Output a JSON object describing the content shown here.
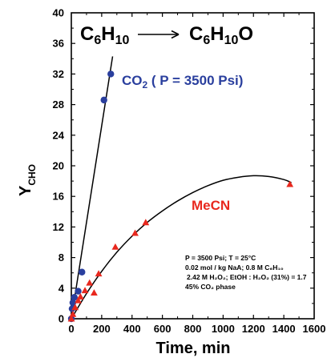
{
  "chart_data": {
    "type": "scatter",
    "ylabel": "Y",
    "ylabel_sub": "CHO",
    "xlabel": "Time, min",
    "xlim": [
      0,
      1600
    ],
    "ylim": [
      0,
      40
    ],
    "xticks": [
      "0",
      "200",
      "400",
      "600",
      "800",
      "1000",
      "1200",
      "1400",
      "1600"
    ],
    "yticks": [
      "0",
      "4",
      "8",
      "12",
      "16",
      "20",
      "24",
      "28",
      "32",
      "36",
      "40"
    ],
    "reaction": {
      "left": "C6H10",
      "right": "C6H10O"
    },
    "series": [
      {
        "name": "CO2 ( P = 3500 Psi)",
        "color": "#2a3f9e",
        "marker": "circle",
        "x": [
          0,
          5,
          10,
          20,
          45,
          70,
          215,
          260
        ],
        "y": [
          0,
          1.3,
          2.1,
          2.8,
          3.6,
          6.1,
          28.6,
          32.0
        ],
        "fit": {
          "type": "line",
          "x": [
            0,
            272
          ],
          "y": [
            0,
            34.3
          ]
        }
      },
      {
        "name": "MeCN",
        "color": "#e8281e",
        "marker": "triangle",
        "x": [
          0,
          10,
          25,
          45,
          60,
          90,
          120,
          150,
          180,
          290,
          420,
          490,
          1440
        ],
        "y": [
          0,
          0.6,
          1.5,
          2.4,
          2.9,
          3.7,
          4.7,
          3.4,
          5.9,
          9.4,
          11.2,
          12.6,
          17.6
        ],
        "fit": {
          "type": "curve",
          "x": [
            0,
            100,
            200,
            300,
            400,
            500,
            600,
            700,
            800,
            900,
            1000,
            1100,
            1200,
            1300,
            1400,
            1450
          ],
          "y": [
            0,
            3.3,
            6.2,
            8.7,
            10.8,
            12.6,
            14.1,
            15.4,
            16.5,
            17.4,
            18.1,
            18.5,
            18.7,
            18.6,
            18.2,
            17.8
          ]
        }
      }
    ],
    "conditions": [
      "P = 3500 Psi; T = 25°C",
      "0.02 mol / kg NaA; 0.8 M C₆H₁₀",
      "2.42 M H₂O₂; EtOH : H₂O₂ (31%) = 1.7",
      "45% CO₂ phase"
    ]
  }
}
